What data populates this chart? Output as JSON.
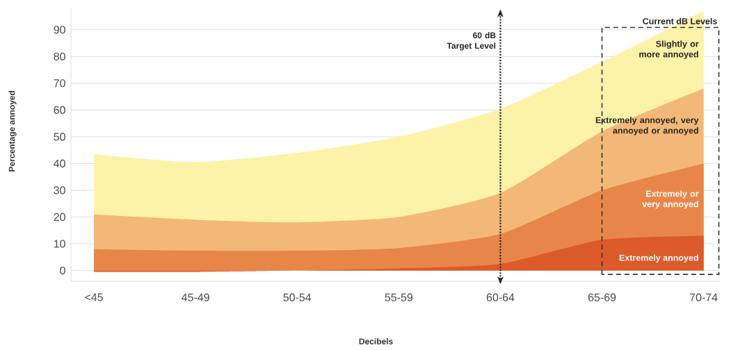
{
  "chart_data": {
    "type": "area",
    "xlabel": "Decibels",
    "ylabel": "Percentage annoyed",
    "categories": [
      "<45",
      "45-49",
      "50-54",
      "55-59",
      "60-64",
      "65-69",
      "70-74"
    ],
    "ylim": [
      -4,
      98
    ],
    "yticks": [
      0,
      10,
      20,
      30,
      40,
      50,
      60,
      70,
      80,
      90
    ],
    "grid": "y",
    "series": [
      {
        "name": "Slightly or more annoyed",
        "color": "#fdf3a8",
        "values": [
          43.5,
          40.5,
          44,
          50,
          60.5,
          78,
          97
        ]
      },
      {
        "name": "Extremely annoyed, very annoyed or annoyed",
        "color": "#f3b877",
        "values": [
          21,
          19,
          18,
          20,
          29,
          52,
          68
        ]
      },
      {
        "name": "Extremely or very annoyed",
        "color": "#e8864a",
        "values": [
          8,
          7.4,
          7.4,
          8.4,
          13.7,
          30,
          40
        ]
      },
      {
        "name": "Extremely annoyed",
        "color": "#dd5a2a",
        "values": [
          -0.5,
          -0.5,
          0,
          0.8,
          2.5,
          11.5,
          13
        ]
      }
    ],
    "ref_lines": [
      {
        "axis": "x",
        "value": "60-64",
        "label": "60 dB Target Level",
        "line_style": "dotted"
      }
    ],
    "annotations": [
      "Current dB Levels"
    ]
  }
}
